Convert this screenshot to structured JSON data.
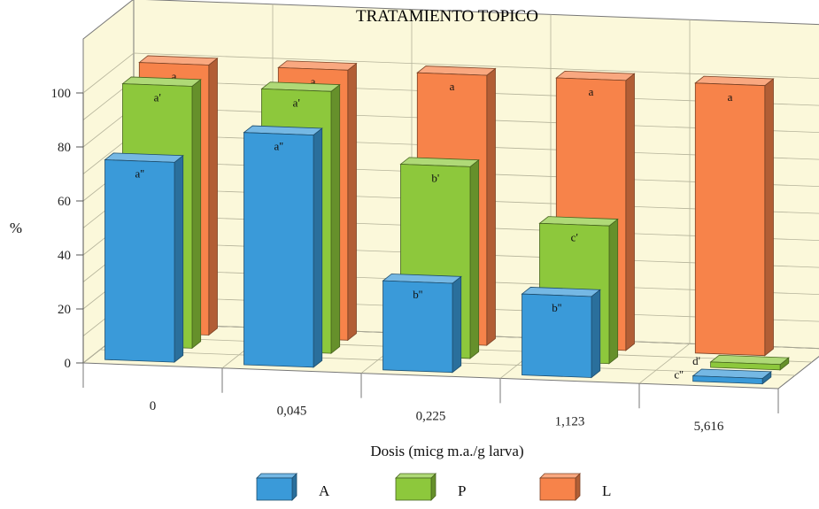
{
  "chart_data": {
    "type": "bar",
    "title": "TRATAMIENTO TOPICO",
    "xlabel": "Dosis (micg m.a./g larva)",
    "ylabel": "%",
    "categories": [
      "0",
      "0,045",
      "0,225",
      "1,123",
      "5,616"
    ],
    "yticks": [
      "0",
      "20",
      "40",
      "60",
      "80",
      "100"
    ],
    "ylim": [
      0,
      120
    ],
    "grid": true,
    "legend": "bottom",
    "series": [
      {
        "name": "L",
        "color": "#F7834A",
        "values": [
          100,
          100,
          100,
          100,
          100
        ],
        "labels": [
          "a",
          "a",
          "a",
          "a",
          "a"
        ]
      },
      {
        "name": "P",
        "color": "#8DC83C",
        "values": [
          97,
          97,
          71,
          51,
          2
        ],
        "labels": [
          "a'",
          "a'",
          "b'",
          "c'",
          "d'"
        ]
      },
      {
        "name": "A",
        "color": "#3A9AD9",
        "values": [
          74,
          86,
          33,
          30,
          2
        ],
        "labels": [
          "a''",
          "a''",
          "b''",
          "b''",
          "c''"
        ]
      }
    ]
  }
}
